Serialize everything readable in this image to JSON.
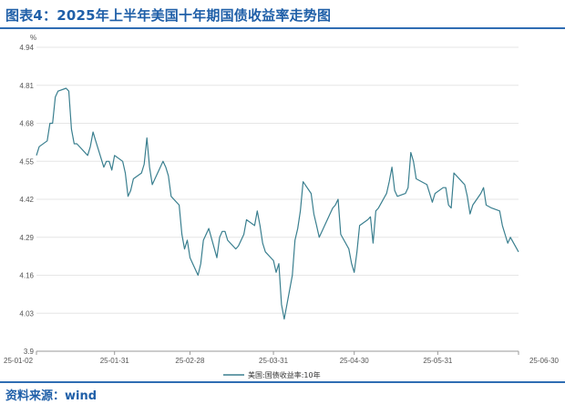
{
  "title": "图表4：2025年上半年美国十年期国债收益率走势图",
  "source": "资料来源：wind",
  "chart_data": {
    "type": "line",
    "unit": "%",
    "ylim": [
      3.9,
      4.94
    ],
    "yticks": [
      3.9,
      4.03,
      4.16,
      4.29,
      4.42,
      4.55,
      4.68,
      4.81,
      4.94
    ],
    "xlim": [
      "2025-01-02",
      "2025-06-30"
    ],
    "xticks": [
      {
        "date": "2025-01-02",
        "label": "25-01-02"
      },
      {
        "date": "2025-01-31",
        "label": "25-01-31"
      },
      {
        "date": "2025-02-28",
        "label": "25-02-28"
      },
      {
        "date": "2025-03-31",
        "label": "25-03-31"
      },
      {
        "date": "2025-04-30",
        "label": "25-04-30"
      },
      {
        "date": "2025-05-31",
        "label": "25-05-31"
      },
      {
        "date": "2025-06-30",
        "label": "25-06-30"
      }
    ],
    "grid": true,
    "legend_position": "bottom-center",
    "series": [
      {
        "name": "美国:国债收益率:10年",
        "color": "#3a7f8f",
        "x": [
          "2025-01-02",
          "2025-01-03",
          "2025-01-06",
          "2025-01-07",
          "2025-01-08",
          "2025-01-09",
          "2025-01-10",
          "2025-01-13",
          "2025-01-14",
          "2025-01-15",
          "2025-01-16",
          "2025-01-17",
          "2025-01-21",
          "2025-01-22",
          "2025-01-23",
          "2025-01-24",
          "2025-01-27",
          "2025-01-28",
          "2025-01-29",
          "2025-01-30",
          "2025-01-31",
          "2025-02-03",
          "2025-02-04",
          "2025-02-05",
          "2025-02-06",
          "2025-02-07",
          "2025-02-10",
          "2025-02-11",
          "2025-02-12",
          "2025-02-13",
          "2025-02-14",
          "2025-02-18",
          "2025-02-19",
          "2025-02-20",
          "2025-02-21",
          "2025-02-24",
          "2025-02-25",
          "2025-02-26",
          "2025-02-27",
          "2025-02-28",
          "2025-03-03",
          "2025-03-04",
          "2025-03-05",
          "2025-03-06",
          "2025-03-07",
          "2025-03-10",
          "2025-03-11",
          "2025-03-12",
          "2025-03-13",
          "2025-03-14",
          "2025-03-17",
          "2025-03-18",
          "2025-03-19",
          "2025-03-20",
          "2025-03-21",
          "2025-03-24",
          "2025-03-25",
          "2025-03-26",
          "2025-03-27",
          "2025-03-28",
          "2025-03-31",
          "2025-04-01",
          "2025-04-02",
          "2025-04-03",
          "2025-04-04",
          "2025-04-07",
          "2025-04-08",
          "2025-04-09",
          "2025-04-10",
          "2025-04-11",
          "2025-04-14",
          "2025-04-15",
          "2025-04-16",
          "2025-04-17",
          "2025-04-21",
          "2025-04-22",
          "2025-04-23",
          "2025-04-24",
          "2025-04-25",
          "2025-04-28",
          "2025-04-29",
          "2025-04-30",
          "2025-05-01",
          "2025-05-02",
          "2025-05-05",
          "2025-05-06",
          "2025-05-07",
          "2025-05-08",
          "2025-05-09",
          "2025-05-12",
          "2025-05-13",
          "2025-05-14",
          "2025-05-15",
          "2025-05-16",
          "2025-05-19",
          "2025-05-20",
          "2025-05-21",
          "2025-05-22",
          "2025-05-23",
          "2025-05-27",
          "2025-05-28",
          "2025-05-29",
          "2025-05-30",
          "2025-06-02",
          "2025-06-03",
          "2025-06-04",
          "2025-06-05",
          "2025-06-06",
          "2025-06-09",
          "2025-06-10",
          "2025-06-11",
          "2025-06-12",
          "2025-06-13",
          "2025-06-16",
          "2025-06-17",
          "2025-06-18",
          "2025-06-20",
          "2025-06-23",
          "2025-06-24",
          "2025-06-25",
          "2025-06-26",
          "2025-06-27",
          "2025-06-30"
        ],
        "values": [
          4.57,
          4.6,
          4.62,
          4.68,
          4.68,
          4.77,
          4.79,
          4.8,
          4.79,
          4.66,
          4.61,
          4.61,
          4.57,
          4.6,
          4.65,
          4.62,
          4.53,
          4.55,
          4.55,
          4.52,
          4.57,
          4.55,
          4.51,
          4.43,
          4.45,
          4.49,
          4.51,
          4.54,
          4.63,
          4.53,
          4.47,
          4.55,
          4.53,
          4.5,
          4.43,
          4.4,
          4.3,
          4.25,
          4.28,
          4.22,
          4.16,
          4.2,
          4.28,
          4.3,
          4.32,
          4.22,
          4.29,
          4.31,
          4.31,
          4.28,
          4.25,
          4.26,
          4.28,
          4.3,
          4.35,
          4.33,
          4.38,
          4.33,
          4.27,
          4.24,
          4.21,
          4.17,
          4.2,
          4.06,
          4.01,
          4.16,
          4.28,
          4.32,
          4.38,
          4.48,
          4.44,
          4.37,
          4.33,
          4.29,
          4.37,
          4.39,
          4.4,
          4.42,
          4.3,
          4.25,
          4.2,
          4.17,
          4.24,
          4.33,
          4.35,
          4.36,
          4.27,
          4.38,
          4.39,
          4.44,
          4.48,
          4.53,
          4.45,
          4.43,
          4.44,
          4.46,
          4.58,
          4.55,
          4.49,
          4.47,
          4.44,
          4.41,
          4.44,
          4.46,
          4.46,
          4.4,
          4.39,
          4.51,
          4.48,
          4.47,
          4.43,
          4.37,
          4.4,
          4.44,
          4.46,
          4.4,
          4.39,
          4.38,
          4.33,
          4.3,
          4.27,
          4.29,
          4.24
        ]
      }
    ]
  }
}
